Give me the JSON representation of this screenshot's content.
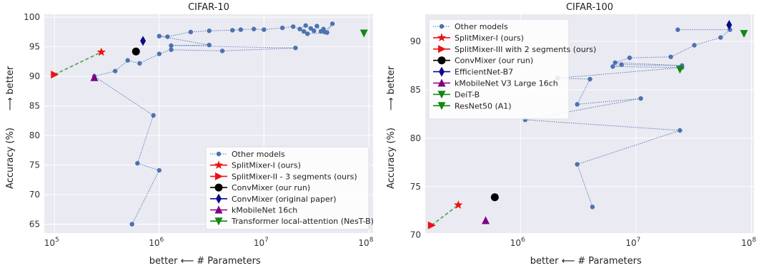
{
  "chart_data": [
    {
      "type": "scatter",
      "title": "CIFAR-10",
      "xlabel_left": "better ⟵",
      "xlabel": "# Parameters",
      "ylabel": "Accuracy (%)",
      "ylabel_arrow": "⟶ better",
      "xscale": "log",
      "xlim": [
        80000,
        110000000
      ],
      "ylim": [
        63.5,
        100.5
      ],
      "xticks": [
        {
          "value": 100000,
          "label": "10",
          "exp": "5"
        },
        {
          "value": 1000000,
          "label": "10",
          "exp": "6"
        },
        {
          "value": 10000000,
          "label": "10",
          "exp": "7"
        },
        {
          "value": 100000000,
          "label": "10",
          "exp": "8"
        }
      ],
      "yticks": [
        65,
        70,
        75,
        80,
        85,
        90,
        95,
        100
      ],
      "grid": true,
      "legend_position": "lower-right",
      "series": [
        {
          "name": "Other models",
          "marker": "circle",
          "color": "#4c72b0",
          "line": "dotted",
          "x": [
            550000,
            1000000,
            620000,
            880000,
            240000,
            380000,
            500000,
            650000,
            1000000,
            1300000,
            4000000,
            20000000,
            1300000,
            3000000,
            1000000,
            1200000,
            2000000,
            3000000,
            5000000,
            6000000,
            8000000,
            10000000,
            15000000,
            19000000,
            22000000,
            25000000,
            28000000,
            30000000,
            32000000,
            35000000,
            37000000,
            38000000,
            45000000,
            40000000,
            26000000,
            24000000
          ],
          "y": [
            65.0,
            74.1,
            75.3,
            83.4,
            90.0,
            90.9,
            92.7,
            92.2,
            93.8,
            94.5,
            94.3,
            94.8,
            95.2,
            95.3,
            96.8,
            96.7,
            97.5,
            97.7,
            97.8,
            97.9,
            98.0,
            97.9,
            98.2,
            98.4,
            98.0,
            98.6,
            98.1,
            97.7,
            98.5,
            97.6,
            98.0,
            97.5,
            98.9,
            97.4,
            97.2,
            97.6
          ]
        },
        {
          "name": "SplitMixer-I (ours)",
          "marker": "star",
          "color": "#ee1111",
          "x": [
            280000
          ],
          "y": [
            94.1
          ]
        },
        {
          "name": "SplitMixer-II - 3 segments (ours)",
          "marker": "triangle-right",
          "color": "#ee1111",
          "x": [
            100000
          ],
          "y": [
            90.3
          ]
        },
        {
          "name": "ConvMixer (our run)",
          "marker": "circle-large",
          "color": "#000000",
          "x": [
            600000
          ],
          "y": [
            94.2
          ]
        },
        {
          "name": "ConvMixer (original paper)",
          "marker": "diamond",
          "color": "#0a0a8a",
          "x": [
            700000
          ],
          "y": [
            96.0
          ]
        },
        {
          "name": "kMobileNet 16ch",
          "marker": "triangle-up",
          "color": "#800080",
          "x": [
            240000
          ],
          "y": [
            89.8
          ]
        },
        {
          "name": "Transformer local-attention (NesT-B)",
          "marker": "triangle-down",
          "color": "#118811",
          "x": [
            90000000
          ],
          "y": [
            97.3
          ]
        }
      ],
      "dashed_link": {
        "color": "#55aa55",
        "x": [
          100000,
          280000
        ],
        "y": [
          90.3,
          94.1
        ]
      }
    },
    {
      "type": "scatter",
      "title": "CIFAR-100",
      "xlabel_left": "better ⟵",
      "xlabel": "# Parameters",
      "ylabel": "Accuracy (%)",
      "ylabel_arrow": "⟶ better",
      "xscale": "log",
      "xlim": [
        150000,
        105000000
      ],
      "ylim": [
        70.2,
        92.8
      ],
      "xticks": [
        {
          "value": 1000000,
          "label": "10",
          "exp": "6"
        },
        {
          "value": 10000000,
          "label": "10",
          "exp": "7"
        },
        {
          "value": 100000000,
          "label": "10",
          "exp": "8"
        }
      ],
      "yticks": [
        70,
        75,
        80,
        85,
        90
      ],
      "grid": true,
      "legend_position": "upper-left",
      "series": [
        {
          "name": "Other models",
          "marker": "circle",
          "color": "#4c72b0",
          "line": "dotted",
          "x": [
            4200000,
            3100000,
            24000000,
            1100000,
            11000000,
            3100000,
            4000000,
            2100000,
            25000000,
            6300000,
            7500000,
            25000000,
            6600000,
            8800000,
            20000000,
            32000000,
            54000000,
            65000000,
            23000000
          ],
          "y": [
            72.9,
            77.3,
            80.8,
            81.9,
            84.1,
            83.5,
            86.1,
            86.2,
            87.3,
            87.4,
            87.6,
            87.5,
            87.8,
            88.3,
            88.4,
            89.6,
            90.4,
            91.2,
            91.2
          ]
        },
        {
          "name": "SplitMixer-I (ours)",
          "marker": "star",
          "color": "#ee1111",
          "x": [
            290000
          ],
          "y": [
            73.1
          ]
        },
        {
          "name": "SplitMixer-III with 2 segments (ours)",
          "marker": "triangle-right",
          "color": "#ee1111",
          "x": [
            170000
          ],
          "y": [
            71.0
          ]
        },
        {
          "name": "ConvMixer (our run)",
          "marker": "circle-large",
          "color": "#000000",
          "x": [
            600000
          ],
          "y": [
            73.9
          ]
        },
        {
          "name": "EfficientNet-B7",
          "marker": "diamond",
          "color": "#0a0a8a",
          "x": [
            64000000
          ],
          "y": [
            91.7
          ]
        },
        {
          "name": "kMobileNet V3 Large 16ch",
          "marker": "triangle-up",
          "color": "#800080",
          "x": [
            500000
          ],
          "y": [
            71.5
          ]
        },
        {
          "name": "DeiT-B",
          "marker": "triangle-down",
          "color": "#118811",
          "x": [
            86000000
          ],
          "y": [
            90.8
          ]
        },
        {
          "name": "ResNet50 (A1)",
          "marker": "triangle-down",
          "color": "#118811",
          "x": [
            24000000
          ],
          "y": [
            87.1
          ]
        }
      ],
      "dashed_link": {
        "color": "#55aa55",
        "x": [
          170000,
          290000
        ],
        "y": [
          71.0,
          73.1
        ]
      }
    }
  ]
}
